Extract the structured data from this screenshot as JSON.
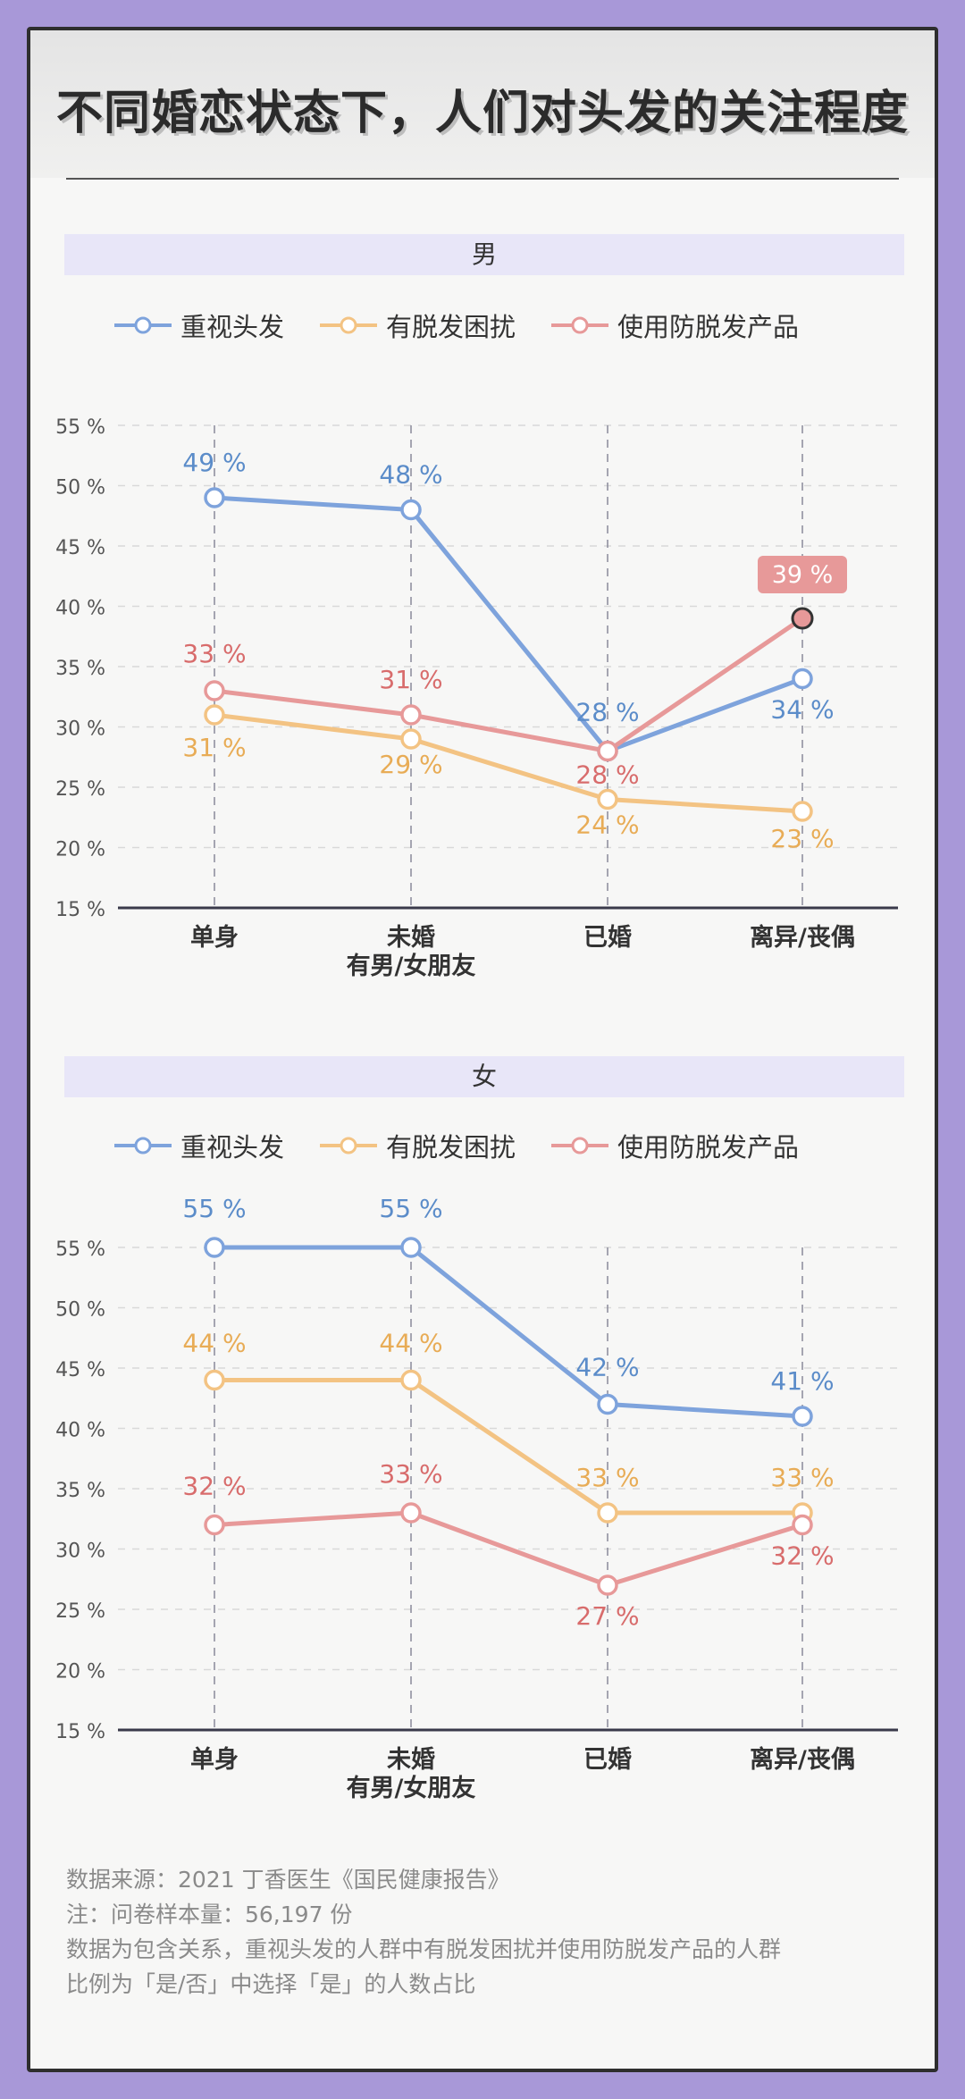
{
  "page": {
    "title": "不同婚恋状态下，人们对头发的关注程度"
  },
  "colors": {
    "blue": "#7ea3dc",
    "orange": "#f3c383",
    "red": "#e79999"
  },
  "legend": [
    {
      "label": "重视头发",
      "color": "#7ea3dc"
    },
    {
      "label": "有脱发困扰",
      "color": "#f3c383"
    },
    {
      "label": "使用防脱发产品",
      "color": "#e79999"
    }
  ],
  "chart_data": [
    {
      "type": "line",
      "title": "男",
      "categories": [
        "单身",
        "未婚\n有男/女朋友",
        "已婚",
        "离异/丧偶"
      ],
      "ylim": [
        15,
        55
      ],
      "yticks": [
        "15 %",
        "20 %",
        "25 %",
        "30 %",
        "35 %",
        "40 %",
        "45 %",
        "50 %",
        "55 %"
      ],
      "grid": true,
      "legend_position": "top",
      "series": [
        {
          "name": "重视头发",
          "values": [
            49,
            48,
            28,
            34
          ],
          "labels": [
            "49 %",
            "48 %",
            "28 %",
            "34 %"
          ]
        },
        {
          "name": "有脱发困扰",
          "values": [
            31,
            29,
            24,
            23
          ],
          "labels": [
            "31 %",
            "29 %",
            "24 %",
            "23 %"
          ]
        },
        {
          "name": "使用防脱发产品",
          "values": [
            33,
            31,
            28,
            39
          ],
          "labels": [
            "33 %",
            "31 %",
            "28 %",
            "39 %"
          ]
        }
      ]
    },
    {
      "type": "line",
      "title": "女",
      "categories": [
        "单身",
        "未婚\n有男/女朋友",
        "已婚",
        "离异/丧偶"
      ],
      "ylim": [
        15,
        55
      ],
      "yticks": [
        "15 %",
        "20 %",
        "25 %",
        "30 %",
        "35 %",
        "40 %",
        "45 %",
        "50 %",
        "55 %"
      ],
      "grid": true,
      "legend_position": "top",
      "series": [
        {
          "name": "重视头发",
          "values": [
            55,
            55,
            42,
            41
          ],
          "labels": [
            "55 %",
            "55 %",
            "42 %",
            "41 %"
          ]
        },
        {
          "name": "有脱发困扰",
          "values": [
            44,
            44,
            33,
            33
          ],
          "labels": [
            "44 %",
            "44 %",
            "33 %",
            "33 %"
          ]
        },
        {
          "name": "使用防脱发产品",
          "values": [
            32,
            33,
            27,
            32
          ],
          "labels": [
            "32 %",
            "33 %",
            "27 %",
            "32 %"
          ]
        }
      ]
    }
  ],
  "footnotes": {
    "source": "数据来源：2021 丁香医生《国民健康报告》",
    "sample": "注：问卷样本量：56,197 份",
    "note_line1": "数据为包含关系，重视头发的人群中有脱发困扰并使用防脱发产品的人群",
    "note_line2": "比例为「是/否」中选择「是」的人数占比"
  }
}
